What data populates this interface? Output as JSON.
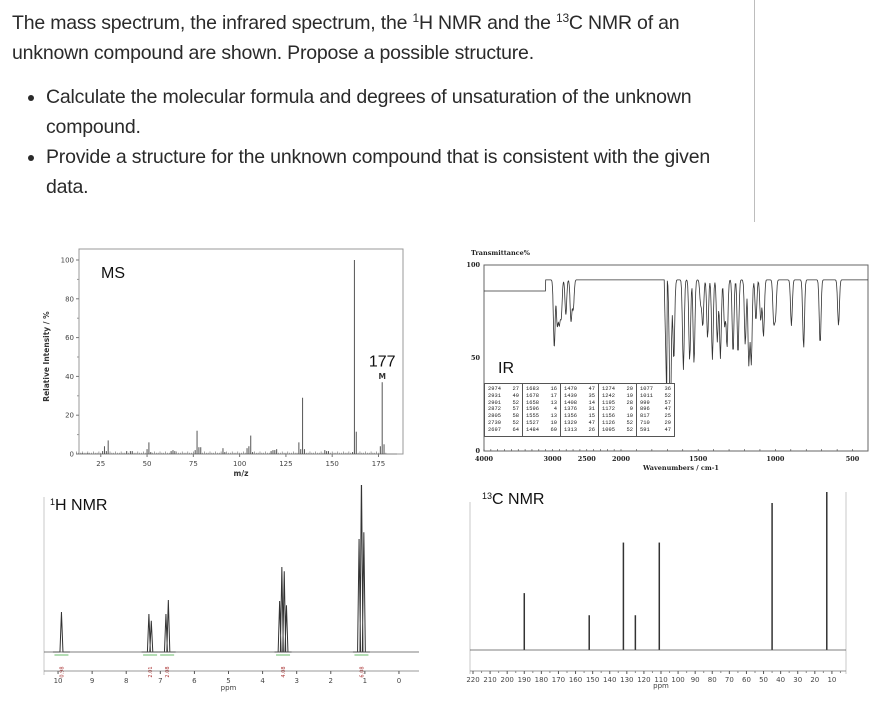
{
  "question": {
    "intro_part1": "The mass spectrum, the infrared spectrum, the ",
    "sup1": "1",
    "intro_part2": "H NMR and the ",
    "sup2": "13",
    "intro_part3": "C NMR of an unknown compound are shown. Propose a possible structure.",
    "bullets": [
      "Calculate the molecular formula and degrees of unsaturation of the unknown compound.",
      "Provide a structure for the unknown compound that is consistent with the given data."
    ]
  },
  "panels": {
    "ms_label": "MS",
    "ir_label": "IR",
    "h_nmr_sup": "1",
    "h_nmr_label": "H NMR",
    "c_nmr_sup": "13",
    "c_nmr_label": "C NMR"
  },
  "chart_data": [
    {
      "type": "bar",
      "title": "MS",
      "xlabel": "m/z",
      "ylabel": "Relative Intensity / %",
      "xlim": [
        10,
        185
      ],
      "ylim": [
        0,
        100
      ],
      "xticks": [
        25,
        50,
        75,
        100,
        125,
        150,
        175
      ],
      "yticks": [
        0,
        20,
        40,
        60,
        80,
        100
      ],
      "annotations": [
        {
          "text": "177",
          "x": 177
        },
        {
          "text": "M",
          "x": 177
        }
      ],
      "x": [
        15,
        18,
        26,
        27,
        28,
        29,
        39,
        41,
        42,
        50,
        51,
        52,
        63,
        64,
        65,
        76,
        77,
        78,
        79,
        91,
        92,
        104,
        105,
        106,
        107,
        117,
        118,
        119,
        120,
        132,
        133,
        134,
        135,
        146,
        147,
        148,
        161,
        162,
        163,
        176,
        177,
        178
      ],
      "values": [
        0.5,
        0.5,
        1.5,
        4,
        1.5,
        7,
        1.5,
        1.5,
        1.5,
        2.5,
        6,
        1,
        1.5,
        2,
        1.5,
        2,
        12,
        3.5,
        3.5,
        3,
        1,
        3,
        4,
        9.5,
        1,
        1.5,
        2,
        2,
        2.5,
        6,
        2.5,
        29,
        2.5,
        2,
        1.5,
        1.5,
        1,
        100,
        11.5,
        4,
        37,
        5
      ]
    },
    {
      "type": "line",
      "title": "IR",
      "xlabel": "Wavenumbers / cm-1",
      "ylabel": "Transmittance%",
      "xlim": [
        4000,
        400
      ],
      "ylim": [
        0,
        100
      ],
      "xticks": [
        4000,
        3000,
        2500,
        2000,
        1500,
        1000,
        500
      ],
      "yticks": [
        0,
        50,
        100
      ],
      "peak_table": [
        [
          [
            2974,
            27
          ],
          [
            2931,
            49
          ],
          [
            2901,
            52
          ],
          [
            2872,
            57
          ],
          [
            2805,
            58
          ],
          [
            2730,
            52
          ],
          [
            2697,
            64
          ]
        ],
        [
          [
            1683,
            16
          ],
          [
            1678,
            17
          ],
          [
            1658,
            13
          ],
          [
            1596,
            4
          ],
          [
            1555,
            13
          ],
          [
            1527,
            10
          ],
          [
            1484,
            69
          ]
        ],
        [
          [
            1470,
            47
          ],
          [
            1439,
            35
          ],
          [
            1408,
            14
          ],
          [
            1376,
            31
          ],
          [
            1356,
            15
          ],
          [
            1329,
            47
          ],
          [
            1313,
            26
          ]
        ],
        [
          [
            1274,
            20
          ],
          [
            1242,
            19
          ],
          [
            1195,
            28
          ],
          [
            1172,
            9
          ],
          [
            1156,
            10
          ],
          [
            1126,
            52
          ],
          [
            1095,
            52
          ]
        ],
        [
          [
            1077,
            36
          ],
          [
            1011,
            52
          ],
          [
            999,
            57
          ],
          [
            896,
            47
          ],
          [
            817,
            25
          ],
          [
            710,
            29
          ],
          [
            591,
            47
          ]
        ]
      ]
    },
    {
      "type": "line",
      "title": "1H NMR",
      "xlabel": "ppm",
      "xlim": [
        10.5,
        -0.5
      ],
      "xticks": [
        10,
        9,
        8,
        7,
        6,
        5,
        4,
        3,
        2,
        1,
        0
      ],
      "peaks": [
        {
          "ppm": 9.9,
          "multiplicity": "s",
          "integral": "0.98"
        },
        {
          "ppm": 7.3,
          "multiplicity": "d",
          "integral": "2.01"
        },
        {
          "ppm": 6.8,
          "multiplicity": "d",
          "integral": "2.08"
        },
        {
          "ppm": 3.4,
          "multiplicity": "q",
          "integral": "4.08"
        },
        {
          "ppm": 1.1,
          "multiplicity": "t",
          "integral": "6.08"
        }
      ]
    },
    {
      "type": "bar",
      "title": "13C NMR",
      "xlabel": "ppm",
      "xlim": [
        220,
        0
      ],
      "xticks": [
        220,
        210,
        200,
        190,
        180,
        170,
        160,
        150,
        140,
        130,
        120,
        110,
        100,
        90,
        80,
        70,
        60,
        50,
        40,
        30,
        20,
        10
      ],
      "x": [
        190,
        152,
        132,
        125,
        111,
        45,
        13
      ],
      "values": [
        36,
        22,
        68,
        22,
        68,
        93,
        100
      ]
    }
  ]
}
